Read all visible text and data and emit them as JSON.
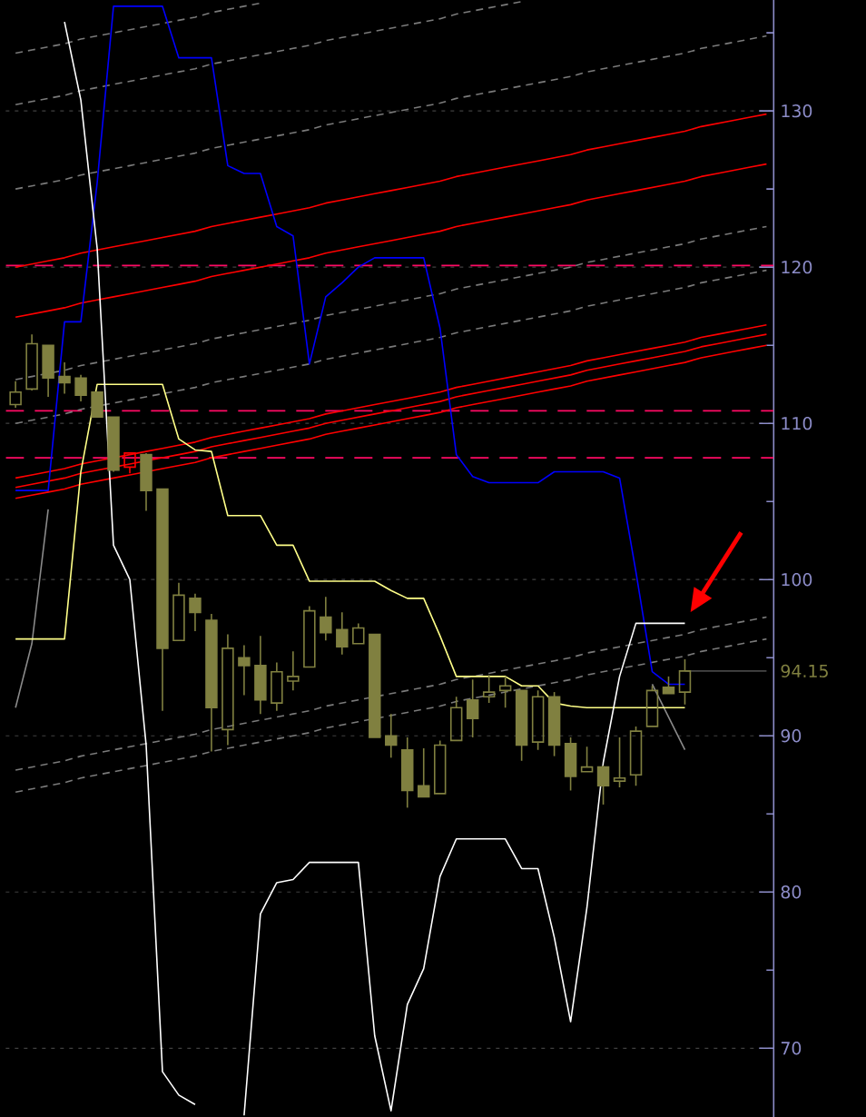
{
  "chart_data": {
    "type": "candlestick",
    "categories": [
      null,
      null,
      null,
      null,
      null,
      null,
      null,
      null,
      null,
      null,
      null,
      null,
      null,
      null,
      null,
      null,
      null,
      null,
      null,
      null,
      null,
      null,
      null,
      null,
      null,
      null,
      null,
      null,
      null,
      null,
      null,
      null,
      null,
      null,
      null,
      null,
      null,
      null,
      null,
      null,
      null,
      null,
      null,
      null,
      null,
      null,
      null
    ],
    "ohlc": [
      [
        111.2,
        112.7,
        111.0,
        112.0
      ],
      [
        112.2,
        115.7,
        112.1,
        115.1
      ],
      [
        115.0,
        115.0,
        111.7,
        112.9
      ],
      [
        113.0,
        113.9,
        111.9,
        112.6
      ],
      [
        112.9,
        113.1,
        111.4,
        111.8
      ],
      [
        112.0,
        112.0,
        110.4,
        110.4
      ],
      [
        110.4,
        110.4,
        106.9,
        107.0
      ],
      [
        107.2,
        108.1,
        106.8,
        108.1
      ],
      [
        108.0,
        108.1,
        104.4,
        105.7
      ],
      [
        105.8,
        105.8,
        91.6,
        95.6
      ],
      [
        96.1,
        99.8,
        96.1,
        99.0
      ],
      [
        98.8,
        99.1,
        96.7,
        97.9
      ],
      [
        97.4,
        97.8,
        89.0,
        91.8
      ],
      [
        90.4,
        96.5,
        89.4,
        95.6
      ],
      [
        95.0,
        95.8,
        92.6,
        94.5
      ],
      [
        94.5,
        96.4,
        91.4,
        92.3
      ],
      [
        92.1,
        94.7,
        91.6,
        94.1
      ],
      [
        93.5,
        95.4,
        92.9,
        93.8
      ],
      [
        94.4,
        98.3,
        94.4,
        98.0
      ],
      [
        97.6,
        98.9,
        96.1,
        96.6
      ],
      [
        96.8,
        97.9,
        95.2,
        95.7
      ],
      [
        95.9,
        97.2,
        95.9,
        96.9
      ],
      [
        96.5,
        96.5,
        89.9,
        89.9
      ],
      [
        90.0,
        91.4,
        88.6,
        89.4
      ],
      [
        89.1,
        89.9,
        85.4,
        86.5
      ],
      [
        86.8,
        89.2,
        86.1,
        86.1
      ],
      [
        86.3,
        89.7,
        86.3,
        89.4
      ],
      [
        89.7,
        92.5,
        89.7,
        91.8
      ],
      [
        92.3,
        93.6,
        89.9,
        91.1
      ],
      [
        92.5,
        93.9,
        92.1,
        92.8
      ],
      [
        92.9,
        93.8,
        91.8,
        93.2
      ],
      [
        92.9,
        92.9,
        88.4,
        89.4
      ],
      [
        89.6,
        92.9,
        89.1,
        92.5
      ],
      [
        92.5,
        92.8,
        88.7,
        89.4
      ],
      [
        89.5,
        89.9,
        86.5,
        87.4
      ],
      [
        87.7,
        89.3,
        87.7,
        88.0
      ],
      [
        88.0,
        88.1,
        85.6,
        86.8
      ],
      [
        87.1,
        89.9,
        86.7,
        87.3
      ],
      [
        87.5,
        90.6,
        86.8,
        90.3
      ],
      [
        90.6,
        93.2,
        90.6,
        92.9
      ],
      [
        93.1,
        93.8,
        92.7,
        92.7
      ],
      [
        92.8,
        94.9,
        92.0,
        94.15
      ],
      null,
      null,
      null,
      null,
      null
    ],
    "colors": [
      "#808040",
      "#808040",
      "#808040",
      "#808040",
      "#808040",
      "#808040",
      "#808040",
      "#ff0000",
      "#808040",
      "#808040",
      "#808040",
      "#808040",
      "#808040",
      "#808040",
      "#808040",
      "#808040",
      "#808040",
      "#808040",
      "#808040",
      "#808040",
      "#808040",
      "#808040",
      "#808040",
      "#808040",
      "#808040",
      "#808040",
      "#808040",
      "#808040",
      "#808040",
      "#808040",
      "#808040",
      "#808040",
      "#808040",
      "#808040",
      "#808040",
      "#808040",
      "#808040",
      "#808040",
      "#808040",
      "#808040",
      "#808040",
      "#808040",
      null,
      null,
      null,
      null,
      null
    ],
    "series": [
      {
        "type": "line",
        "color": "#7a7a7a",
        "line_style": "dashed",
        "values": [
          133.7,
          133.9,
          134.1,
          134.3,
          134.6,
          134.8,
          135.0,
          135.2,
          135.4,
          135.6,
          135.8,
          136.0,
          136.3,
          136.5,
          136.7,
          136.9,
          null,
          null,
          null,
          null,
          null,
          null,
          null,
          null,
          null,
          null,
          null,
          null,
          null,
          null,
          null,
          null,
          null,
          null,
          null,
          null,
          null,
          null,
          null,
          null,
          null,
          null,
          null,
          null,
          null,
          null,
          null
        ]
      },
      {
        "type": "line",
        "color": "#7a7a7a",
        "line_style": "dashed",
        "values": [
          130.4,
          130.6,
          130.8,
          131.0,
          131.3,
          131.5,
          131.7,
          131.9,
          132.1,
          132.3,
          132.5,
          132.7,
          133.0,
          133.2,
          133.4,
          133.6,
          133.8,
          134.0,
          134.2,
          134.5,
          134.7,
          134.9,
          135.1,
          135.3,
          135.5,
          135.7,
          135.9,
          136.2,
          136.4,
          136.6,
          136.8,
          137.0,
          null,
          null,
          null,
          null,
          null,
          null,
          null,
          null,
          null,
          null,
          null,
          null,
          null,
          null,
          null
        ]
      },
      {
        "type": "line",
        "color": "#7a7a7a",
        "line_style": "dashed",
        "values": [
          125.0,
          125.2,
          125.4,
          125.6,
          125.9,
          126.1,
          126.3,
          126.5,
          126.7,
          126.9,
          127.1,
          127.3,
          127.6,
          127.8,
          128.0,
          128.2,
          128.4,
          128.6,
          128.8,
          129.1,
          129.3,
          129.5,
          129.7,
          129.9,
          130.1,
          130.3,
          130.5,
          130.8,
          131.0,
          131.2,
          131.4,
          131.6,
          131.8,
          132.0,
          132.2,
          132.5,
          132.7,
          132.9,
          133.1,
          133.3,
          133.5,
          133.7,
          134.0,
          134.2,
          134.4,
          134.6,
          134.8
        ]
      },
      {
        "type": "line",
        "color": "#7a7a7a",
        "line_style": "dashed",
        "values": [
          112.8,
          113.0,
          113.2,
          113.4,
          113.7,
          113.9,
          114.1,
          114.3,
          114.5,
          114.7,
          114.9,
          115.1,
          115.4,
          115.6,
          115.8,
          116.0,
          116.2,
          116.4,
          116.6,
          116.9,
          117.1,
          117.3,
          117.5,
          117.7,
          117.9,
          118.1,
          118.3,
          118.6,
          118.8,
          119.0,
          119.2,
          119.4,
          119.6,
          119.8,
          120.0,
          120.3,
          120.5,
          120.7,
          120.9,
          121.1,
          121.3,
          121.5,
          121.8,
          122.0,
          122.2,
          122.4,
          122.6
        ]
      },
      {
        "type": "line",
        "color": "#7a7a7a",
        "line_style": "dashed",
        "values": [
          110.0,
          110.2,
          110.4,
          110.6,
          110.9,
          111.1,
          111.3,
          111.5,
          111.7,
          111.9,
          112.1,
          112.3,
          112.6,
          112.8,
          113.0,
          113.2,
          113.4,
          113.6,
          113.8,
          114.1,
          114.3,
          114.5,
          114.7,
          114.9,
          115.1,
          115.3,
          115.5,
          115.8,
          116.0,
          116.2,
          116.4,
          116.6,
          116.8,
          117.0,
          117.2,
          117.5,
          117.7,
          117.9,
          118.1,
          118.3,
          118.5,
          118.7,
          119.0,
          119.2,
          119.4,
          119.6,
          119.8
        ]
      },
      {
        "type": "line",
        "color": "#7a7a7a",
        "line_style": "dashed",
        "values": [
          87.8,
          88.0,
          88.2,
          88.4,
          88.7,
          88.9,
          89.1,
          89.3,
          89.5,
          89.7,
          89.9,
          90.1,
          90.4,
          90.6,
          90.8,
          91.0,
          91.2,
          91.4,
          91.6,
          91.9,
          92.1,
          92.3,
          92.5,
          92.7,
          92.9,
          93.1,
          93.3,
          93.6,
          93.8,
          94.0,
          94.2,
          94.4,
          94.6,
          94.8,
          95.0,
          95.3,
          95.5,
          95.7,
          95.9,
          96.1,
          96.3,
          96.5,
          96.8,
          97.0,
          97.2,
          97.4,
          97.6
        ]
      },
      {
        "type": "line",
        "color": "#7a7a7a",
        "line_style": "dashed",
        "values": [
          86.4,
          86.6,
          86.8,
          87.0,
          87.3,
          87.5,
          87.7,
          87.9,
          88.1,
          88.3,
          88.5,
          88.7,
          89.0,
          89.2,
          89.4,
          89.6,
          89.8,
          90.0,
          90.2,
          90.5,
          90.7,
          90.9,
          91.1,
          91.3,
          91.5,
          91.7,
          91.9,
          92.2,
          92.4,
          92.6,
          92.8,
          93.0,
          93.2,
          93.4,
          93.6,
          93.9,
          94.1,
          94.3,
          94.5,
          94.7,
          94.9,
          95.1,
          95.4,
          95.6,
          95.8,
          96.0,
          96.2
        ]
      },
      {
        "type": "line",
        "color": "#ff0000",
        "values": [
          120.0,
          120.2,
          120.4,
          120.6,
          120.9,
          121.1,
          121.3,
          121.5,
          121.7,
          121.9,
          122.1,
          122.3,
          122.6,
          122.8,
          123.0,
          123.2,
          123.4,
          123.6,
          123.8,
          124.1,
          124.3,
          124.5,
          124.7,
          124.9,
          125.1,
          125.3,
          125.5,
          125.8,
          126.0,
          126.2,
          126.4,
          126.6,
          126.8,
          127.0,
          127.2,
          127.5,
          127.7,
          127.9,
          128.1,
          128.3,
          128.5,
          128.7,
          129.0,
          129.2,
          129.4,
          129.6,
          129.8
        ]
      },
      {
        "type": "line",
        "color": "#ff0000",
        "values": [
          116.8,
          117.0,
          117.2,
          117.4,
          117.7,
          117.9,
          118.1,
          118.3,
          118.5,
          118.7,
          118.9,
          119.1,
          119.4,
          119.6,
          119.8,
          120.0,
          120.2,
          120.4,
          120.6,
          120.9,
          121.1,
          121.3,
          121.5,
          121.7,
          121.9,
          122.1,
          122.3,
          122.6,
          122.8,
          123.0,
          123.2,
          123.4,
          123.6,
          123.8,
          124.0,
          124.3,
          124.5,
          124.7,
          124.9,
          125.1,
          125.3,
          125.5,
          125.8,
          126.0,
          126.2,
          126.4,
          126.6
        ]
      },
      {
        "type": "line",
        "color": "#ff0000",
        "values": [
          106.5,
          106.7,
          106.9,
          107.1,
          107.4,
          107.6,
          107.8,
          108.0,
          108.2,
          108.4,
          108.6,
          108.8,
          109.1,
          109.3,
          109.5,
          109.7,
          109.9,
          110.1,
          110.3,
          110.6,
          110.8,
          111.0,
          111.2,
          111.4,
          111.6,
          111.8,
          112.0,
          112.3,
          112.5,
          112.7,
          112.9,
          113.1,
          113.3,
          113.5,
          113.7,
          114.0,
          114.2,
          114.4,
          114.6,
          114.8,
          115.0,
          115.2,
          115.5,
          115.7,
          115.9,
          116.1,
          116.3
        ]
      },
      {
        "type": "line",
        "color": "#ff0000",
        "values": [
          105.9,
          106.1,
          106.3,
          106.5,
          106.8,
          107.0,
          107.2,
          107.4,
          107.6,
          107.8,
          108.0,
          108.2,
          108.5,
          108.7,
          108.9,
          109.1,
          109.3,
          109.5,
          109.7,
          110.0,
          110.2,
          110.4,
          110.6,
          110.8,
          111.0,
          111.2,
          111.4,
          111.7,
          111.9,
          112.1,
          112.3,
          112.5,
          112.7,
          112.9,
          113.1,
          113.4,
          113.6,
          113.8,
          114.0,
          114.2,
          114.4,
          114.6,
          114.9,
          115.1,
          115.3,
          115.5,
          115.7
        ]
      },
      {
        "type": "line",
        "color": "#ff0000",
        "values": [
          105.2,
          105.4,
          105.6,
          105.8,
          106.1,
          106.3,
          106.5,
          106.7,
          106.9,
          107.1,
          107.3,
          107.5,
          107.8,
          108.0,
          108.2,
          108.4,
          108.6,
          108.8,
          109.0,
          109.3,
          109.5,
          109.7,
          109.9,
          110.1,
          110.3,
          110.5,
          110.7,
          111.0,
          111.2,
          111.4,
          111.6,
          111.8,
          112.0,
          112.2,
          112.4,
          112.7,
          112.9,
          113.1,
          113.3,
          113.5,
          113.7,
          113.9,
          114.2,
          114.4,
          114.6,
          114.8,
          115.0
        ]
      },
      {
        "type": "line",
        "color": "#464646",
        "values": [
          null,
          null,
          null,
          null,
          null,
          null,
          null,
          null,
          null,
          null,
          null,
          null,
          null,
          null,
          null,
          null,
          null,
          null,
          null,
          null,
          null,
          null,
          null,
          null,
          null,
          null,
          null,
          null,
          null,
          null,
          null,
          null,
          null,
          null,
          null,
          null,
          null,
          null,
          null,
          null,
          null,
          94.15,
          94.15,
          94.15,
          94.15,
          94.15,
          94.15
        ]
      },
      {
        "type": "line",
        "color": "#8a8a8a",
        "values": [
          91.8,
          95.9,
          104.5,
          null,
          null,
          null,
          null,
          null,
          null,
          null,
          null,
          null,
          null,
          null,
          null,
          null,
          null,
          null,
          null,
          null,
          null,
          null,
          null,
          null,
          null,
          null,
          null,
          null,
          null,
          null,
          null,
          null,
          null,
          null,
          null,
          null,
          null,
          null,
          null,
          93.3,
          91.2,
          89.1,
          null,
          null,
          null,
          null,
          null
        ]
      },
      {
        "type": "line",
        "color": "#ffff88",
        "values": [
          96.2,
          96.2,
          96.2,
          96.2,
          106.9,
          112.5,
          112.5,
          112.5,
          112.5,
          112.5,
          109.0,
          108.3,
          108.2,
          104.1,
          104.1,
          104.1,
          102.2,
          102.2,
          99.9,
          99.9,
          99.9,
          99.9,
          99.9,
          99.3,
          98.8,
          98.8,
          96.4,
          93.8,
          93.8,
          93.8,
          93.8,
          93.2,
          93.2,
          92.1,
          91.9,
          91.8,
          91.8,
          91.8,
          91.8,
          91.8,
          91.8,
          91.8,
          null,
          null,
          null,
          null,
          null
        ]
      },
      {
        "type": "line",
        "color": "#0000ff",
        "values": [
          105.7,
          105.7,
          105.7,
          116.5,
          116.5,
          125.4,
          136.7,
          136.7,
          136.7,
          136.7,
          133.4,
          133.4,
          133.4,
          126.5,
          126.0,
          126.0,
          122.6,
          122.0,
          113.8,
          118.1,
          119.0,
          120.0,
          120.6,
          120.6,
          120.6,
          120.6,
          116.1,
          108.0,
          106.6,
          106.2,
          106.2,
          106.2,
          106.2,
          106.9,
          106.9,
          106.9,
          106.9,
          106.5,
          100.5,
          94.1,
          93.3,
          93.3,
          null,
          null,
          null,
          null,
          null
        ]
      },
      {
        "type": "line",
        "color": "#ffffff",
        "values": [
          null,
          null,
          null,
          135.7,
          130.7,
          121.2,
          102.2,
          100.0,
          89.4,
          68.5,
          67.0,
          66.4,
          null,
          null,
          65.7,
          78.6,
          80.6,
          80.8,
          81.9,
          81.9,
          81.9,
          81.9,
          70.8,
          66.0,
          72.8,
          75.1,
          81.0,
          83.4,
          83.4,
          83.4,
          83.4,
          81.5,
          81.5,
          77.1,
          71.7,
          79.0,
          88.3,
          93.8,
          97.2,
          97.2,
          97.2,
          97.2,
          null,
          null,
          null,
          null,
          null
        ]
      }
    ],
    "ylim": [
      65.6,
      137.1
    ],
    "yticks": [
      70,
      {
        "value": 75,
        "label": null
      },
      80,
      {
        "value": 85,
        "label": null
      },
      90,
      94.15,
      {
        "value": 95,
        "label": null
      },
      100,
      {
        "value": 105,
        "label": null
      },
      110,
      {
        "value": 115,
        "label": null
      },
      120,
      {
        "value": 125,
        "label": null
      },
      130,
      {
        "value": 135,
        "label": null
      }
    ],
    "grid": "y",
    "tick_labels": "y",
    "ref_lines": [
      {
        "axis": "y",
        "value": 120.1,
        "color": "#ff0a64",
        "line_style": "dashed"
      },
      {
        "axis": "y",
        "value": 110.8,
        "color": "#ff0a64",
        "line_style": "dashed"
      },
      {
        "axis": "y",
        "value": 107.8,
        "color": "#ff0a64",
        "line_style": "dashed"
      }
    ]
  }
}
